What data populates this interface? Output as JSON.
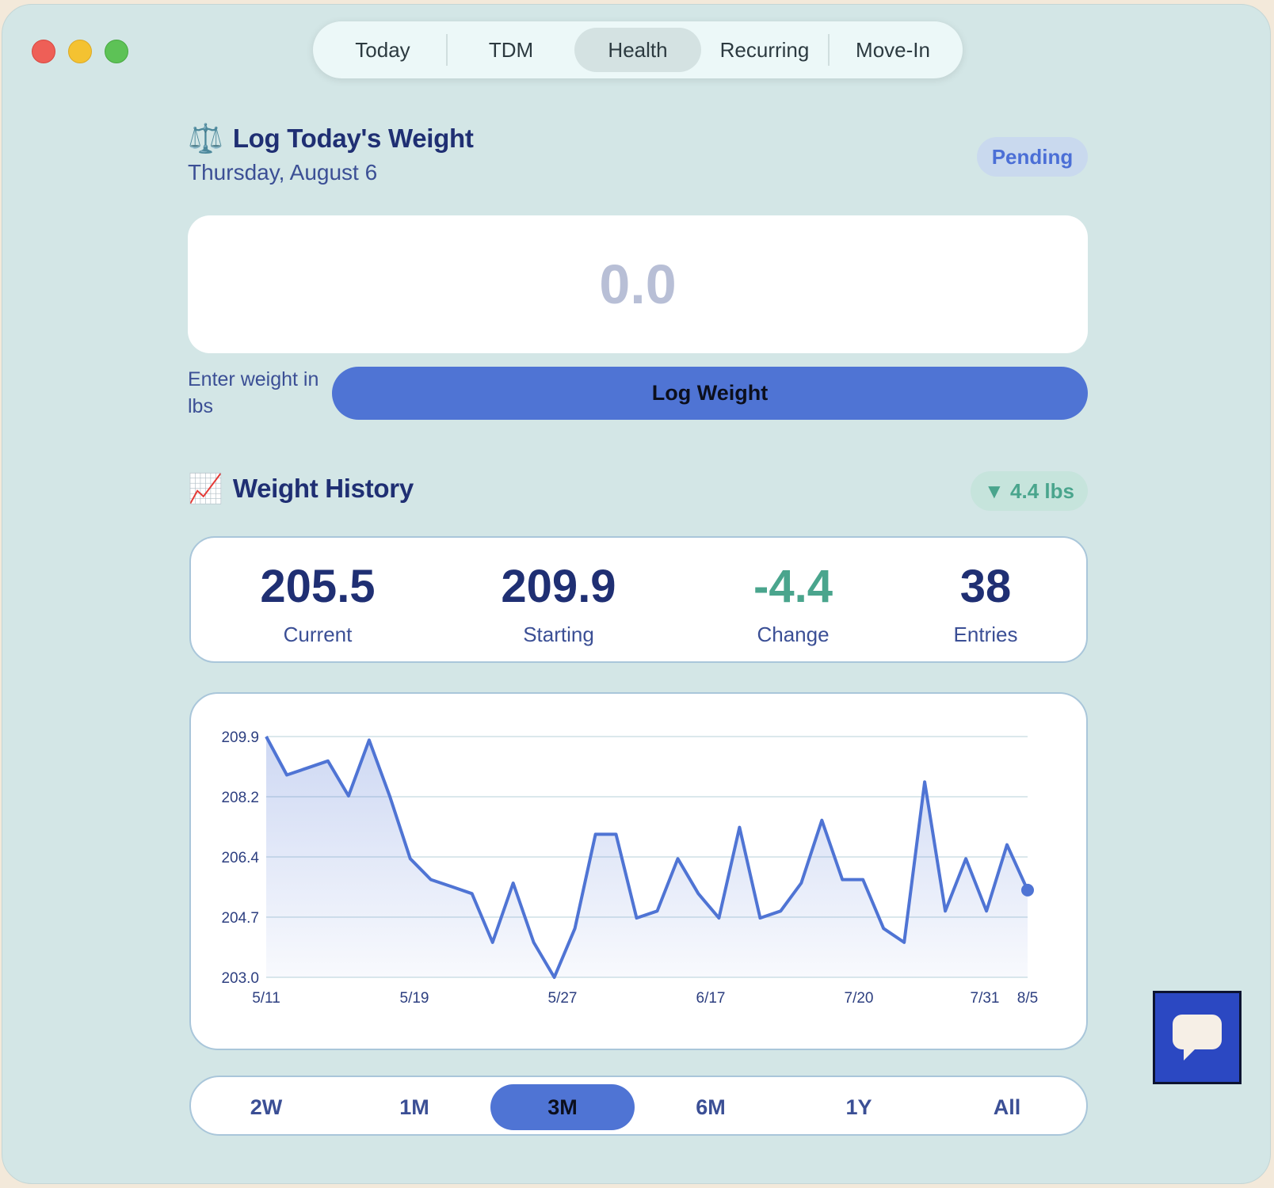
{
  "tabs": [
    {
      "label": "Today"
    },
    {
      "label": "TDM"
    },
    {
      "label": "Health"
    },
    {
      "label": "Recurring"
    },
    {
      "label": "Move-In"
    }
  ],
  "active_tab": "Health",
  "log": {
    "emoji": "⚖️",
    "title": "Log Today's Weight",
    "date": "Thursday, August 6",
    "status": "Pending",
    "input_placeholder": "0.0",
    "hint": "Enter weight in lbs",
    "button_label": "Log Weight"
  },
  "history": {
    "emoji": "📈",
    "title": "Weight History",
    "change_chip": "▼ 4.4 lbs",
    "stats": [
      {
        "value": "205.5",
        "label": "Current"
      },
      {
        "value": "209.9",
        "label": "Starting"
      },
      {
        "value": "-4.4",
        "label": "Change"
      },
      {
        "value": "38",
        "label": "Entries"
      }
    ]
  },
  "ranges": [
    "2W",
    "1M",
    "3M",
    "6M",
    "1Y",
    "All"
  ],
  "active_range": "3M",
  "colors": {
    "accent": "#4f74d4",
    "title": "#1f2f73",
    "positive": "#4aa58d",
    "background": "#d3e6e6"
  },
  "chart_data": {
    "type": "area",
    "title": "",
    "xlabel": "",
    "ylabel": "",
    "y_ticks": [
      "209.9",
      "208.2",
      "206.4",
      "204.7",
      "203.0"
    ],
    "ylim": [
      203.0,
      209.9
    ],
    "x_ticks": [
      "5/11",
      "5/19",
      "5/27",
      "6/17",
      "7/20",
      "7/31",
      "8/5"
    ],
    "grid": true,
    "series": [
      {
        "values": [
          209.9,
          208.8,
          209.0,
          209.2,
          208.2,
          209.8,
          208.2,
          206.4,
          205.8,
          205.6,
          205.4,
          204.0,
          205.7,
          204.0,
          203.0,
          204.4,
          207.1,
          207.1,
          204.7,
          204.9,
          206.4,
          205.4,
          204.7,
          207.3,
          204.7,
          204.9,
          205.7,
          207.5,
          205.8,
          205.8,
          204.4,
          204.0,
          208.6,
          204.9,
          206.4,
          204.9,
          206.8,
          205.5
        ]
      }
    ]
  }
}
